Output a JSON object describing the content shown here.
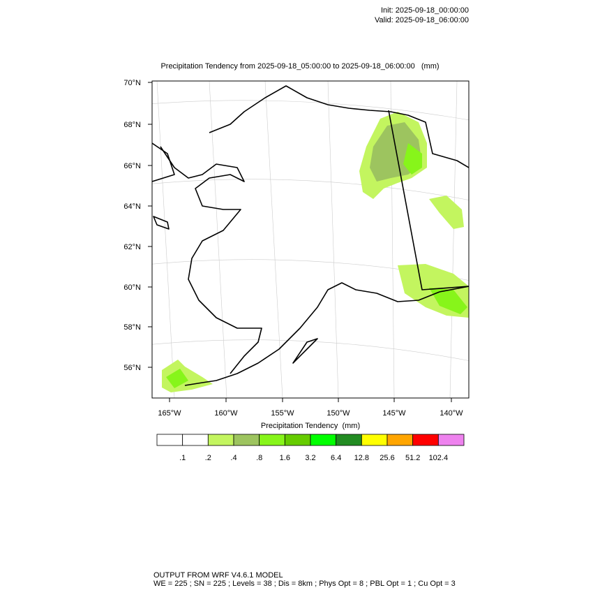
{
  "header": {
    "init": "Init: 2025-09-18_00:00:00",
    "valid": "Valid: 2025-09-18_06:00:00"
  },
  "map": {
    "title": "Precipitation Tendency from 2025-09-18_05:00:00 to 2025-09-18_06:00:00   (mm)",
    "lat_labels": [
      "70°N",
      "68°N",
      "66°N",
      "64°N",
      "62°N",
      "60°N",
      "58°N",
      "56°N"
    ],
    "lon_labels": [
      "165°W",
      "160°W",
      "155°W",
      "150°W",
      "145°W",
      "140°W"
    ]
  },
  "colorbar": {
    "title": "Precipitation Tendency  (mm)",
    "colors": [
      "#ffffff",
      "#ffffff",
      "#c3f55f",
      "#9dc45f",
      "#87f51a",
      "#66cc00",
      "#00ff00",
      "#228b22",
      "#ffff00",
      "#ffa500",
      "#ff0000",
      "#ee82ee"
    ],
    "labels": [
      ".1",
      ".2",
      ".4",
      ".8",
      "1.6",
      "3.2",
      "6.4",
      "12.8",
      "25.6",
      "51.2",
      "102.4"
    ]
  },
  "footer": {
    "line1": "OUTPUT FROM WRF V4.6.1 MODEL",
    "line2": "WE = 225 ; SN = 225 ; Levels = 38 ; Dis = 8km ; Phys Opt = 8 ; PBL Opt = 1 ; Cu Opt = 3"
  }
}
